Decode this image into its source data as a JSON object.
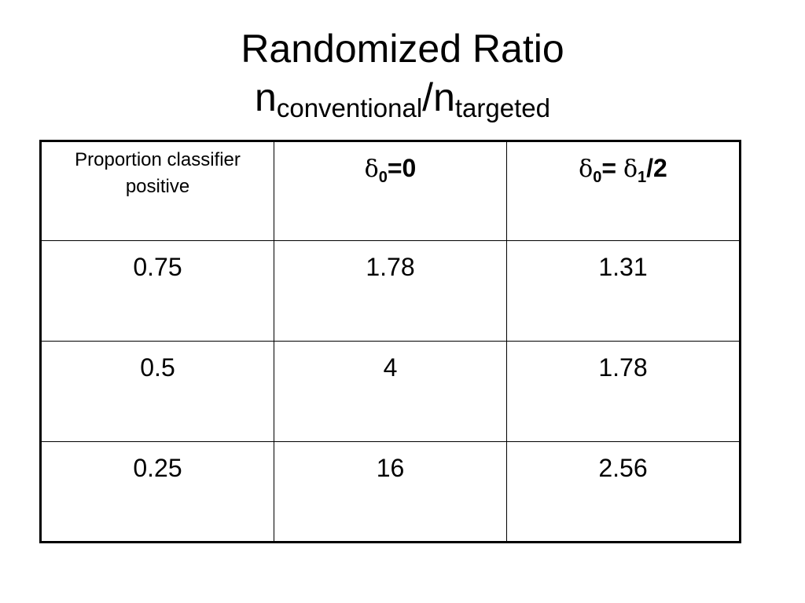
{
  "title": {
    "line1": "Randomized Ratio",
    "n1": "n",
    "sub1": "conventional",
    "slash": "/",
    "n2": "n",
    "sub2": "targeted"
  },
  "table": {
    "header": {
      "col1": "Proportion classifier positive",
      "col2": {
        "delta": "δ",
        "sub": "0",
        "rest": "=0"
      },
      "col3": {
        "delta1": "δ",
        "sub1": "0",
        "eq": "= ",
        "delta2": "δ",
        "sub2": "1",
        "rest": "/2"
      }
    },
    "rows": [
      [
        "0.75",
        "1.78",
        "1.31"
      ],
      [
        "0.5",
        "4",
        "1.78"
      ],
      [
        "0.25",
        "16",
        "2.56"
      ]
    ]
  }
}
